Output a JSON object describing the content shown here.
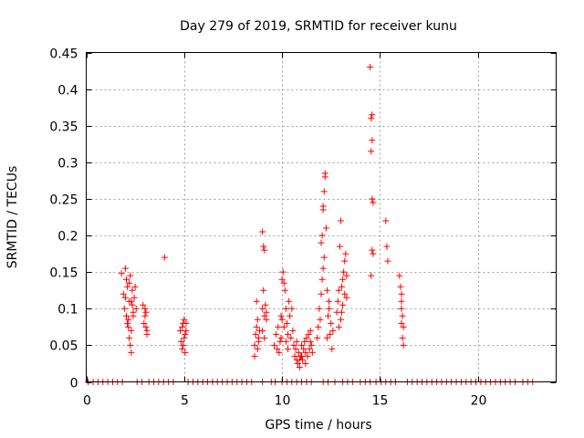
{
  "chart_data": {
    "type": "scatter",
    "title": "Day 279 of 2019, SRMTID for receiver kunu",
    "xlabel": "GPS time / hours",
    "ylabel": "SRMTID / TECUs",
    "xlim": [
      0,
      24
    ],
    "ylim": [
      0,
      0.45
    ],
    "xticks": [
      0,
      5,
      10,
      15,
      20
    ],
    "xtick_labels": [
      "0",
      "5",
      "10",
      "15",
      "20"
    ],
    "yticks": [
      0,
      0.05,
      0.1,
      0.15,
      0.2,
      0.25,
      0.3,
      0.35,
      0.4,
      0.45
    ],
    "ytick_labels": [
      "0",
      "0.05",
      "0.1",
      "0.15",
      "0.2",
      "0.25",
      "0.3",
      "0.35",
      "0.4",
      "0.45"
    ],
    "grid": true,
    "marker": "plus",
    "color": "#ff0000",
    "series": [
      {
        "name": "SRMTID",
        "points": [
          [
            1.8,
            0.148
          ],
          [
            1.9,
            0.12
          ],
          [
            2.0,
            0.155
          ],
          [
            1.95,
            0.1
          ],
          [
            2.05,
            0.09
          ],
          [
            2.1,
            0.13
          ],
          [
            2.15,
            0.085
          ],
          [
            2.2,
            0.11
          ],
          [
            2.25,
            0.145
          ],
          [
            2.3,
            0.07
          ],
          [
            2.35,
            0.125
          ],
          [
            2.4,
            0.095
          ],
          [
            2.2,
            0.06
          ],
          [
            2.25,
            0.05
          ],
          [
            2.3,
            0.04
          ],
          [
            2.35,
            0.105
          ],
          [
            2.45,
            0.115
          ],
          [
            2.5,
            0.13
          ],
          [
            2.15,
            0.075
          ],
          [
            2.05,
            0.14
          ],
          [
            2.1,
            0.08
          ],
          [
            2.4,
            0.09
          ],
          [
            2.55,
            0.1
          ],
          [
            2.0,
            0.115
          ],
          [
            2.2,
            0.135
          ],
          [
            2.3,
            0.11
          ],
          [
            2.9,
            0.105
          ],
          [
            3.0,
            0.09
          ],
          [
            3.05,
            0.075
          ],
          [
            3.1,
            0.065
          ],
          [
            3.0,
            0.1
          ],
          [
            2.95,
            0.08
          ],
          [
            3.05,
            0.095
          ],
          [
            3.1,
            0.07
          ],
          [
            4.0,
            0.17
          ],
          [
            4.8,
            0.07
          ],
          [
            4.85,
            0.055
          ],
          [
            4.9,
            0.075
          ],
          [
            4.95,
            0.05
          ],
          [
            5.0,
            0.085
          ],
          [
            5.05,
            0.065
          ],
          [
            5.1,
            0.08
          ],
          [
            4.9,
            0.045
          ],
          [
            5.0,
            0.06
          ],
          [
            5.1,
            0.07
          ],
          [
            4.95,
            0.08
          ],
          [
            5.05,
            0.04
          ],
          [
            8.6,
            0.05
          ],
          [
            8.65,
            0.065
          ],
          [
            8.7,
            0.075
          ],
          [
            8.75,
            0.045
          ],
          [
            8.8,
            0.06
          ],
          [
            8.7,
            0.11
          ],
          [
            8.85,
            0.07
          ],
          [
            8.6,
            0.035
          ],
          [
            8.75,
            0.085
          ],
          [
            8.8,
            0.055
          ],
          [
            9.0,
            0.205
          ],
          [
            9.05,
            0.185
          ],
          [
            9.1,
            0.18
          ],
          [
            9.05,
            0.125
          ],
          [
            9.0,
            0.1
          ],
          [
            9.1,
            0.09
          ],
          [
            9.15,
            0.105
          ],
          [
            9.2,
            0.085
          ],
          [
            9.0,
            0.07
          ],
          [
            9.1,
            0.06
          ],
          [
            9.2,
            0.095
          ],
          [
            9.6,
            0.05
          ],
          [
            9.7,
            0.065
          ],
          [
            9.75,
            0.045
          ],
          [
            9.8,
            0.075
          ],
          [
            9.85,
            0.04
          ],
          [
            9.9,
            0.055
          ],
          [
            9.95,
            0.09
          ],
          [
            10.0,
            0.14
          ],
          [
            10.05,
            0.15
          ],
          [
            10.1,
            0.135
          ],
          [
            10.0,
            0.085
          ],
          [
            10.1,
            0.075
          ],
          [
            10.15,
            0.125
          ],
          [
            10.2,
            0.1
          ],
          [
            10.25,
            0.08
          ],
          [
            10.3,
            0.065
          ],
          [
            10.35,
            0.11
          ],
          [
            10.4,
            0.09
          ],
          [
            10.45,
            0.06
          ],
          [
            10.5,
            0.1
          ],
          [
            10.55,
            0.07
          ],
          [
            10.2,
            0.055
          ],
          [
            10.3,
            0.045
          ],
          [
            9.95,
            0.06
          ],
          [
            10.6,
            0.05
          ],
          [
            10.65,
            0.035
          ],
          [
            10.7,
            0.045
          ],
          [
            10.75,
            0.03
          ],
          [
            10.8,
            0.025
          ],
          [
            10.85,
            0.04
          ],
          [
            10.9,
            0.02
          ],
          [
            10.95,
            0.035
          ],
          [
            11.0,
            0.05
          ],
          [
            11.05,
            0.03
          ],
          [
            11.1,
            0.045
          ],
          [
            11.15,
            0.055
          ],
          [
            11.2,
            0.04
          ],
          [
            11.25,
            0.06
          ],
          [
            11.3,
            0.035
          ],
          [
            11.35,
            0.065
          ],
          [
            11.4,
            0.045
          ],
          [
            11.45,
            0.07
          ],
          [
            11.5,
            0.05
          ],
          [
            11.55,
            0.04
          ],
          [
            10.75,
            0.055
          ],
          [
            10.9,
            0.03
          ],
          [
            11.2,
            0.025
          ],
          [
            11.0,
            0.035
          ],
          [
            11.45,
            0.055
          ],
          [
            11.8,
            0.06
          ],
          [
            11.85,
            0.075
          ],
          [
            11.9,
            0.1
          ],
          [
            11.95,
            0.085
          ],
          [
            12.0,
            0.12
          ],
          [
            12.05,
            0.14
          ],
          [
            12.1,
            0.155
          ],
          [
            12.0,
            0.19
          ],
          [
            12.05,
            0.2
          ],
          [
            12.1,
            0.24
          ],
          [
            12.1,
            0.235
          ],
          [
            12.15,
            0.26
          ],
          [
            12.2,
            0.28
          ],
          [
            12.2,
            0.285
          ],
          [
            12.25,
            0.21
          ],
          [
            12.15,
            0.17
          ],
          [
            12.3,
            0.125
          ],
          [
            12.35,
            0.09
          ],
          [
            12.4,
            0.11
          ],
          [
            12.45,
            0.065
          ],
          [
            12.5,
            0.08
          ],
          [
            12.55,
            0.045
          ],
          [
            12.6,
            0.07
          ],
          [
            12.3,
            0.06
          ],
          [
            12.4,
            0.1
          ],
          [
            12.8,
            0.095
          ],
          [
            12.85,
            0.11
          ],
          [
            12.9,
            0.125
          ],
          [
            12.95,
            0.185
          ],
          [
            13.0,
            0.22
          ],
          [
            13.05,
            0.13
          ],
          [
            13.1,
            0.14
          ],
          [
            13.15,
            0.15
          ],
          [
            13.2,
            0.165
          ],
          [
            13.25,
            0.175
          ],
          [
            13.3,
            0.145
          ],
          [
            13.1,
            0.105
          ],
          [
            13.0,
            0.085
          ],
          [
            13.2,
            0.12
          ],
          [
            13.3,
            0.115
          ],
          [
            12.9,
            0.075
          ],
          [
            13.05,
            0.095
          ],
          [
            14.5,
            0.43
          ],
          [
            14.55,
            0.36
          ],
          [
            14.6,
            0.365
          ],
          [
            14.6,
            0.33
          ],
          [
            14.55,
            0.315
          ],
          [
            14.6,
            0.25
          ],
          [
            14.65,
            0.245
          ],
          [
            14.6,
            0.18
          ],
          [
            14.65,
            0.175
          ],
          [
            14.55,
            0.145
          ],
          [
            15.3,
            0.22
          ],
          [
            15.35,
            0.185
          ],
          [
            15.4,
            0.165
          ],
          [
            16.0,
            0.145
          ],
          [
            16.05,
            0.13
          ],
          [
            16.1,
            0.11
          ],
          [
            16.1,
            0.1
          ],
          [
            16.15,
            0.09
          ],
          [
            16.1,
            0.08
          ],
          [
            16.2,
            0.075
          ],
          [
            16.15,
            0.06
          ],
          [
            16.2,
            0.05
          ],
          [
            16.1,
            0.12
          ],
          [
            0.1,
            0
          ],
          [
            0.35,
            0
          ],
          [
            0.6,
            0
          ],
          [
            0.85,
            0
          ],
          [
            1.1,
            0
          ],
          [
            1.35,
            0
          ],
          [
            1.6,
            0
          ],
          [
            1.85,
            0
          ],
          [
            2.6,
            0
          ],
          [
            2.85,
            0
          ],
          [
            3.2,
            0
          ],
          [
            3.45,
            0
          ],
          [
            3.7,
            0
          ],
          [
            3.95,
            0
          ],
          [
            4.2,
            0
          ],
          [
            4.45,
            0
          ],
          [
            5.2,
            0
          ],
          [
            5.45,
            0
          ],
          [
            5.7,
            0
          ],
          [
            5.95,
            0
          ],
          [
            6.2,
            0
          ],
          [
            6.45,
            0
          ],
          [
            6.7,
            0
          ],
          [
            6.95,
            0
          ],
          [
            7.2,
            0
          ],
          [
            7.45,
            0
          ],
          [
            7.7,
            0
          ],
          [
            7.95,
            0
          ],
          [
            8.2,
            0
          ],
          [
            8.45,
            0
          ],
          [
            9.0,
            0
          ],
          [
            9.45,
            0
          ],
          [
            9.65,
            0
          ],
          [
            10.0,
            0
          ],
          [
            10.25,
            0
          ],
          [
            10.5,
            0
          ],
          [
            10.75,
            0
          ],
          [
            11.0,
            0
          ],
          [
            11.25,
            0
          ],
          [
            11.5,
            0
          ],
          [
            12.1,
            0
          ],
          [
            12.35,
            0
          ],
          [
            12.7,
            0
          ],
          [
            13.1,
            0
          ],
          [
            13.35,
            0
          ],
          [
            13.6,
            0
          ],
          [
            14.0,
            0
          ],
          [
            14.25,
            0
          ],
          [
            14.5,
            0
          ],
          [
            14.8,
            0
          ],
          [
            15.05,
            0
          ],
          [
            15.3,
            0
          ],
          [
            15.55,
            0
          ],
          [
            15.8,
            0
          ],
          [
            16.4,
            0
          ],
          [
            16.65,
            0
          ],
          [
            16.9,
            0
          ],
          [
            17.15,
            0
          ],
          [
            17.4,
            0
          ],
          [
            17.65,
            0
          ],
          [
            17.9,
            0
          ],
          [
            18.15,
            0
          ],
          [
            18.4,
            0
          ],
          [
            18.65,
            0
          ],
          [
            18.9,
            0
          ],
          [
            19.15,
            0
          ],
          [
            19.4,
            0
          ],
          [
            19.65,
            0
          ],
          [
            19.9,
            0
          ],
          [
            20.15,
            0
          ],
          [
            20.4,
            0
          ],
          [
            20.65,
            0
          ],
          [
            20.9,
            0
          ],
          [
            21.15,
            0
          ],
          [
            21.4,
            0
          ],
          [
            21.65,
            0
          ],
          [
            21.9,
            0
          ],
          [
            22.3,
            0
          ],
          [
            22.55,
            0
          ],
          [
            22.8,
            0
          ]
        ]
      }
    ]
  }
}
